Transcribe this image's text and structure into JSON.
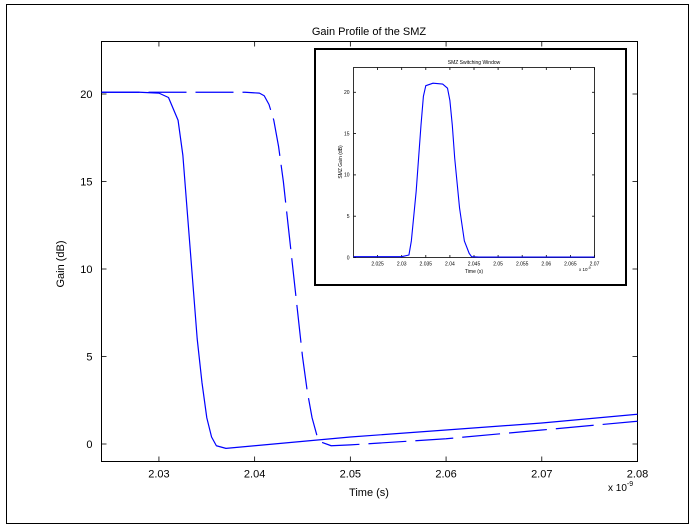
{
  "chart_data": [
    {
      "type": "line",
      "title": "Gain Profile of the SMZ",
      "xlabel": "Time (s)",
      "ylabel": "Gain (dB)",
      "x_exponent_label": "x 10",
      "x_exponent_power": "-9",
      "xlim": [
        2.024,
        2.08
      ],
      "ylim": [
        -1,
        23
      ],
      "xticks": [
        2.03,
        2.04,
        2.05,
        2.06,
        2.07,
        2.08
      ],
      "yticks": [
        0,
        5,
        10,
        15,
        20
      ],
      "grid": false,
      "series": [
        {
          "style": "solid",
          "color": "#0000ff",
          "x": [
            2.024,
            2.028,
            2.03,
            2.031,
            2.032,
            2.0325,
            2.033,
            2.0335,
            2.034,
            2.0345,
            2.035,
            2.0355,
            2.036,
            2.037,
            2.038,
            2.04,
            2.05,
            2.06,
            2.07,
            2.08
          ],
          "y": [
            20.1,
            20.1,
            20.05,
            19.8,
            18.5,
            16.5,
            13.0,
            9.5,
            6.0,
            3.5,
            1.5,
            0.4,
            -0.1,
            -0.25,
            -0.2,
            -0.1,
            0.4,
            0.8,
            1.2,
            1.7
          ]
        },
        {
          "style": "dashed",
          "color": "#0000ff",
          "x": [
            2.024,
            2.03,
            2.035,
            2.039,
            2.0405,
            2.041,
            2.0415,
            2.042,
            2.0425,
            2.043,
            2.0435,
            2.044,
            2.0445,
            2.045,
            2.0455,
            2.046,
            2.0465,
            2.047,
            2.048,
            2.05,
            2.06,
            2.07,
            2.08
          ],
          "y": [
            20.1,
            20.1,
            20.1,
            20.1,
            20.05,
            19.9,
            19.4,
            18.5,
            17.0,
            15.0,
            12.5,
            10.0,
            7.5,
            5.0,
            3.0,
            1.5,
            0.5,
            0.1,
            -0.1,
            -0.05,
            0.3,
            0.8,
            1.3
          ]
        }
      ]
    },
    {
      "type": "line",
      "title": "SMZ Switching Window",
      "xlabel": "Time (s)",
      "ylabel": "SMZ Gain (dB)",
      "x_exponent_label": "x 10",
      "x_exponent_power": "-9",
      "xlim": [
        2.02,
        2.07
      ],
      "ylim": [
        0,
        23
      ],
      "xticks": [
        2.025,
        2.03,
        2.035,
        2.04,
        2.045,
        2.05,
        2.055,
        2.06,
        2.065,
        2.07
      ],
      "yticks": [
        0,
        5,
        10,
        15,
        20
      ],
      "grid": false,
      "series": [
        {
          "style": "solid",
          "color": "#0000ff",
          "x": [
            2.02,
            2.03,
            2.0315,
            2.032,
            2.033,
            2.034,
            2.0345,
            2.035,
            2.0365,
            2.0385,
            2.0395,
            2.04,
            2.0405,
            2.041,
            2.042,
            2.043,
            2.044,
            2.0445,
            2.046,
            2.07
          ],
          "y": [
            0.1,
            0.1,
            0.3,
            2.0,
            8.0,
            16.0,
            19.5,
            20.8,
            21.1,
            21.0,
            20.5,
            19.0,
            16.0,
            12.0,
            6.0,
            2.0,
            0.5,
            0.1,
            0.05,
            0.05
          ]
        }
      ]
    }
  ]
}
